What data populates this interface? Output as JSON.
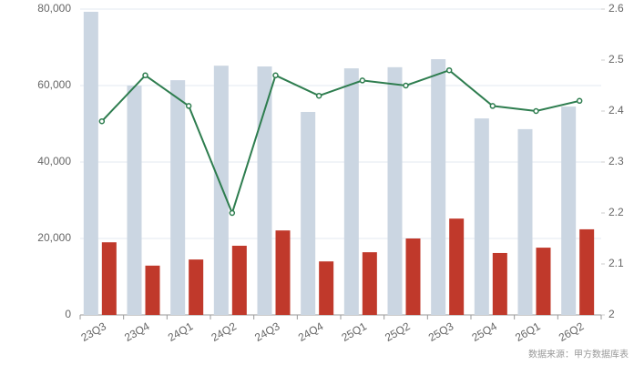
{
  "chart_data": {
    "type": "bar-line",
    "categories": [
      "23Q3",
      "23Q4",
      "24Q1",
      "24Q2",
      "24Q3",
      "24Q4",
      "25Q1",
      "25Q2",
      "25Q3",
      "25Q4",
      "26Q1",
      "26Q2"
    ],
    "series": [
      {
        "type": "bar",
        "color": "#cbd6e2",
        "values": [
          79300,
          60000,
          61400,
          65200,
          65000,
          53100,
          64500,
          64800,
          66900,
          51400,
          48600,
          54500
        ]
      },
      {
        "type": "bar",
        "color": "#c0392b",
        "values": [
          19000,
          12900,
          14500,
          18100,
          22100,
          14000,
          16400,
          20000,
          25200,
          16200,
          17600,
          22400
        ]
      },
      {
        "type": "line",
        "axis": "y2",
        "color": "#2e7d4f",
        "values": [
          2.38,
          2.47,
          2.41,
          2.2,
          2.47,
          2.43,
          2.46,
          2.45,
          2.48,
          2.41,
          2.4,
          2.42
        ]
      }
    ],
    "ylim": [
      0,
      80000
    ],
    "yticks": [
      0,
      {
        "value": 20000,
        "label": "20,000"
      },
      {
        "value": 40000,
        "label": "40,000"
      },
      {
        "value": 60000,
        "label": "60,000"
      },
      {
        "value": 80000,
        "label": "80,000"
      }
    ],
    "y2lim": [
      2,
      2.6
    ],
    "y2ticks": [
      2,
      2.1,
      2.2,
      2.3,
      2.4,
      2.5,
      2.6
    ],
    "grid": true,
    "source": "数据来源：甲方数据库表"
  }
}
